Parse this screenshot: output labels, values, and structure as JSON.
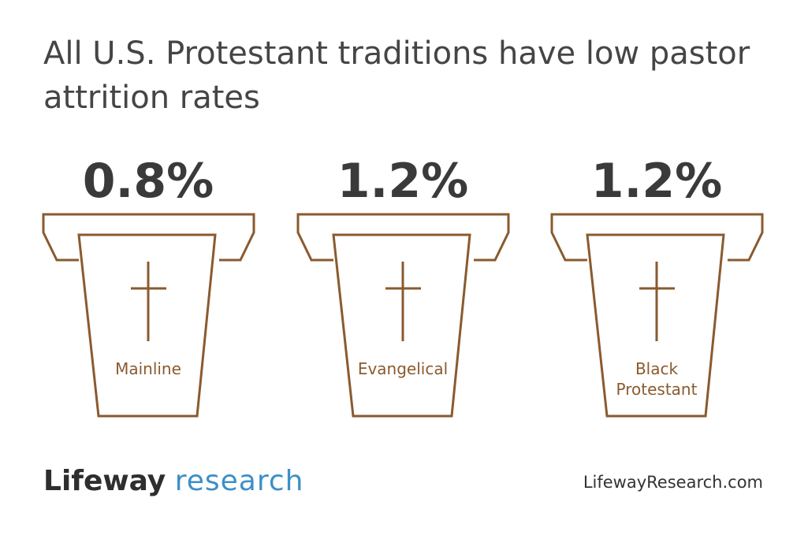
{
  "title": "All U.S. Protestant traditions have low pastor attrition rates",
  "items": [
    {
      "value": "0.8%",
      "label": "Mainline"
    },
    {
      "value": "1.2%",
      "label": "Evangelical"
    },
    {
      "value": "1.2%",
      "label": "Black Protestant"
    }
  ],
  "footer": {
    "logo_main": "Lifeway",
    "logo_sub": "research",
    "url": "LifewayResearch.com"
  }
}
